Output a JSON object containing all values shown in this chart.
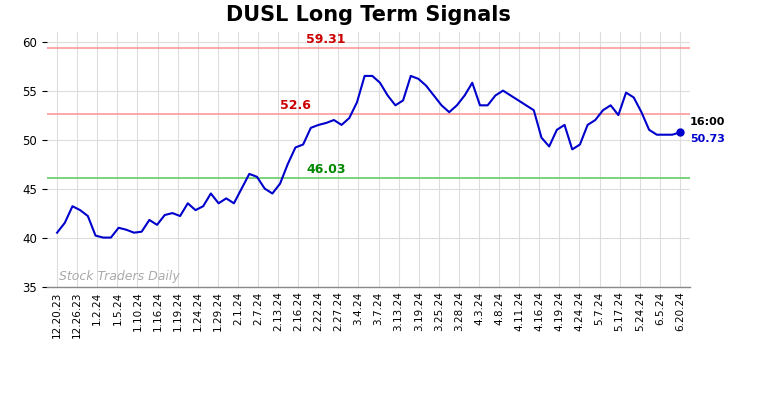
{
  "title": "DUSL Long Term Signals",
  "x_labels": [
    "12.20.23",
    "12.26.23",
    "1.2.24",
    "1.5.24",
    "1.10.24",
    "1.16.24",
    "1.19.24",
    "1.24.24",
    "1.29.24",
    "2.1.24",
    "2.7.24",
    "2.13.24",
    "2.16.24",
    "2.22.24",
    "2.27.24",
    "3.4.24",
    "3.7.24",
    "3.13.24",
    "3.19.24",
    "3.25.24",
    "3.28.24",
    "4.3.24",
    "4.8.24",
    "4.11.24",
    "4.16.24",
    "4.19.24",
    "4.24.24",
    "5.7.24",
    "5.17.24",
    "5.24.24",
    "6.5.24",
    "6.20.24"
  ],
  "price_data": [
    40.5,
    41.5,
    43.2,
    42.8,
    42.2,
    40.2,
    40.0,
    40.0,
    41.0,
    40.8,
    40.5,
    40.6,
    41.8,
    41.3,
    42.3,
    42.5,
    42.2,
    43.5,
    42.8,
    43.2,
    44.5,
    43.5,
    44.0,
    43.5,
    45.0,
    46.5,
    46.2,
    45.0,
    44.5,
    45.5,
    47.5,
    49.2,
    49.5,
    51.2,
    51.5,
    51.7,
    52.0,
    51.5,
    52.2,
    53.8,
    56.5,
    56.5,
    55.8,
    54.5,
    53.5,
    54.0,
    56.5,
    56.2,
    55.5,
    54.5,
    53.5,
    52.8,
    53.5,
    54.5,
    55.8,
    53.5,
    53.5,
    54.5,
    55.0,
    54.5,
    54.0,
    53.5,
    53.0,
    50.2,
    49.3,
    51.0,
    51.5,
    49.0,
    49.5,
    51.5,
    52.0,
    53.0,
    53.5,
    52.5,
    54.8,
    54.3,
    52.8,
    51.0,
    50.5,
    50.5,
    50.5,
    50.73
  ],
  "line_color": "#0000cc",
  "last_point_color": "#0000cc",
  "hline_upper": 59.31,
  "hline_mid": 52.6,
  "hline_lower": 46.03,
  "hline_upper_line_color": "#ff9999",
  "hline_mid_line_color": "#ff9999",
  "hline_lower_line_color": "#66cc66",
  "annotation_upper_text": "59.31",
  "annotation_mid_text": "52.6",
  "annotation_lower_text": "46.03",
  "annotation_color_upper": "#cc0000",
  "annotation_color_mid": "#cc0000",
  "annotation_color_lower": "#008800",
  "annotation_last_line1": "16:00",
  "annotation_last_line2": "50.73",
  "annotation_last_color_line1": "#000000",
  "annotation_last_color_line2": "#0000cc",
  "watermark": "Stock Traders Daily",
  "watermark_color": "#aaaaaa",
  "ylim": [
    35,
    61
  ],
  "yticks": [
    35,
    40,
    45,
    50,
    55,
    60
  ],
  "background_color": "#ffffff",
  "grid_color": "#dddddd",
  "title_fontsize": 15,
  "tick_fontsize": 7.5,
  "figsize": [
    7.84,
    3.98
  ],
  "dpi": 100
}
